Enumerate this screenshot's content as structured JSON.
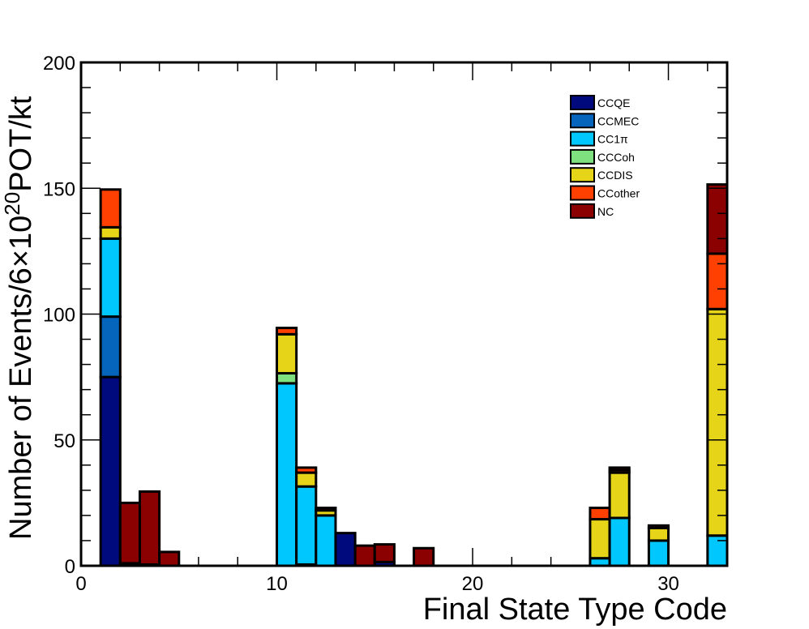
{
  "chart_data": {
    "type": "bar",
    "stacked": true,
    "xlabel": "Final State Type Code",
    "ylabel": {
      "prefix": "Number of Events/6×10",
      "superscript": "20",
      "suffix": "POT/kt"
    },
    "xlim": [
      0,
      33
    ],
    "ylim": [
      0,
      200
    ],
    "xticks": [
      0,
      10,
      20,
      30
    ],
    "yticks": [
      0,
      50,
      100,
      150,
      200
    ],
    "bin_width": 1,
    "legend_position": "top-right",
    "series": [
      {
        "name": "CCQE",
        "color": "#000a7c",
        "values": {
          "1": 75,
          "2": 1,
          "3": 0.5,
          "11": 0.5,
          "13": 13,
          "15": 1.5
        }
      },
      {
        "name": "CCMEC",
        "color": "#0564bc",
        "values": {
          "1": 24
        }
      },
      {
        "name": "CC1π",
        "color": "#00c8ff",
        "values": {
          "1": 31,
          "10": 72.5,
          "11": 31,
          "12": 20,
          "26": 3,
          "27": 19,
          "29": 10,
          "32": 12
        }
      },
      {
        "name": "CCCoh",
        "color": "#7ee07e",
        "values": {
          "10": 4
        }
      },
      {
        "name": "CCDIS",
        "color": "#e6d418",
        "values": {
          "1": 4.5,
          "10": 15.5,
          "11": 5.5,
          "12": 2,
          "26": 15.5,
          "27": 18,
          "29": 5,
          "32": 90
        }
      },
      {
        "name": "CCother",
        "color": "#ff4000",
        "values": {
          "1": 15,
          "10": 2.5,
          "11": 2,
          "26": 4.5,
          "27": 1,
          "32": 22
        }
      },
      {
        "name": "NC",
        "color": "#8b0000",
        "values": {
          "2": 24,
          "3": 29,
          "4": 5.5,
          "12": 1,
          "14": 8,
          "15": 7,
          "17": 7,
          "27": 1,
          "29": 1,
          "32": 27.5
        }
      }
    ]
  }
}
